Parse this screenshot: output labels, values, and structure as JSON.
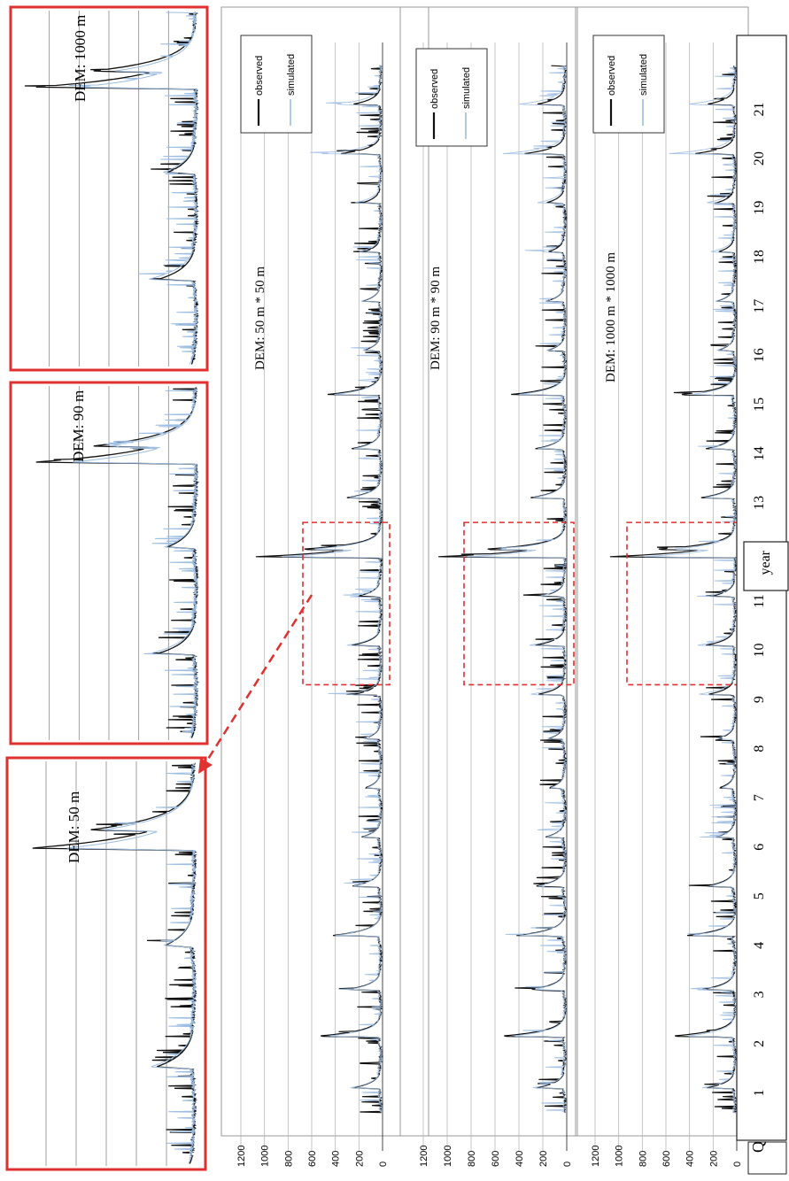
{
  "figure": {
    "xlabel": "year",
    "ylabel": "Q",
    "yticks": [
      "1200",
      "1000",
      "800",
      "600",
      "400",
      "200",
      "0"
    ],
    "years": [
      "1",
      "2",
      "3",
      "4",
      "5",
      "6",
      "7",
      "8",
      "9",
      "10",
      "11",
      "12",
      "13",
      "14",
      "15",
      "16",
      "17",
      "18",
      "19",
      "20",
      "21"
    ]
  },
  "colors": {
    "observed": "#111111",
    "simulated": "#9dbde2",
    "highlight": "#e03030",
    "grid": "#b8b8b8"
  },
  "chart_data": [
    {
      "type": "line",
      "title": "DEM: 50 m * 50 m",
      "xlabel": "year",
      "ylabel": "Q",
      "ylim": [
        0,
        1200
      ],
      "xlim": [
        0,
        22
      ],
      "grid": true,
      "legend": "top-right",
      "series": [
        {
          "name": "observed",
          "peaks": [
            [
              1.1,
              250
            ],
            [
              2.15,
              560
            ],
            [
              3.1,
              300
            ],
            [
              4.2,
              420
            ],
            [
              5.2,
              260
            ],
            [
              6.2,
              170
            ],
            [
              7.2,
              140
            ],
            [
              8.2,
              150
            ],
            [
              9.1,
              240
            ],
            [
              10.1,
              260
            ],
            [
              11.1,
              200
            ],
            [
              11.9,
              1100
            ],
            [
              12.05,
              710
            ],
            [
              13.1,
              300
            ],
            [
              14.1,
              250
            ],
            [
              15.2,
              470
            ],
            [
              16.1,
              150
            ],
            [
              17.1,
              160
            ],
            [
              18.1,
              150
            ],
            [
              19.1,
              160
            ],
            [
              20.1,
              340
            ],
            [
              21.1,
              250
            ]
          ]
        },
        {
          "name": "simulated",
          "peaks": [
            [
              1.1,
              270
            ],
            [
              2.15,
              480
            ],
            [
              3.1,
              280
            ],
            [
              4.2,
              400
            ],
            [
              5.2,
              250
            ],
            [
              6.2,
              160
            ],
            [
              7.2,
              130
            ],
            [
              8.2,
              160
            ],
            [
              9.1,
              300
            ],
            [
              10.1,
              300
            ],
            [
              11.1,
              210
            ],
            [
              11.9,
              870
            ],
            [
              12.05,
              620
            ],
            [
              13.1,
              280
            ],
            [
              14.1,
              230
            ],
            [
              15.2,
              410
            ],
            [
              16.1,
              160
            ],
            [
              17.1,
              170
            ],
            [
              18.1,
              200
            ],
            [
              19.1,
              230
            ],
            [
              20.1,
              500
            ],
            [
              21.1,
              400
            ]
          ]
        }
      ]
    },
    {
      "type": "line",
      "title": "DEM: 90 m * 90 m",
      "xlabel": "year",
      "ylabel": "Q",
      "ylim": [
        0,
        1200
      ],
      "xlim": [
        0,
        22
      ],
      "grid": true,
      "legend": "top-right",
      "series": [
        {
          "name": "observed",
          "peaks": [
            [
              1.1,
              250
            ],
            [
              2.15,
              560
            ],
            [
              3.1,
              300
            ],
            [
              4.2,
              420
            ],
            [
              5.2,
              260
            ],
            [
              6.2,
              170
            ],
            [
              7.2,
              140
            ],
            [
              8.2,
              150
            ],
            [
              9.1,
              240
            ],
            [
              10.1,
              260
            ],
            [
              11.1,
              200
            ],
            [
              11.9,
              1100
            ],
            [
              12.05,
              710
            ],
            [
              13.1,
              300
            ],
            [
              14.1,
              250
            ],
            [
              15.2,
              470
            ],
            [
              16.1,
              150
            ],
            [
              17.1,
              160
            ],
            [
              18.1,
              150
            ],
            [
              19.1,
              160
            ],
            [
              20.1,
              340
            ],
            [
              21.1,
              250
            ]
          ]
        },
        {
          "name": "simulated",
          "peaks": [
            [
              1.1,
              280
            ],
            [
              2.15,
              470
            ],
            [
              3.1,
              270
            ],
            [
              4.2,
              390
            ],
            [
              5.2,
              240
            ],
            [
              6.2,
              160
            ],
            [
              7.2,
              130
            ],
            [
              8.2,
              160
            ],
            [
              9.1,
              310
            ],
            [
              10.1,
              310
            ],
            [
              11.1,
              220
            ],
            [
              11.9,
              850
            ],
            [
              12.05,
              600
            ],
            [
              13.1,
              280
            ],
            [
              14.1,
              230
            ],
            [
              15.2,
              400
            ],
            [
              16.1,
              160
            ],
            [
              17.1,
              170
            ],
            [
              18.1,
              210
            ],
            [
              19.1,
              240
            ],
            [
              20.1,
              520
            ],
            [
              21.1,
              410
            ]
          ]
        }
      ]
    },
    {
      "type": "line",
      "title": "DEM: 1000 m * 1000 m",
      "xlabel": "year",
      "ylabel": "Q",
      "ylim": [
        0,
        1200
      ],
      "xlim": [
        0,
        22
      ],
      "grid": true,
      "legend": "top-right",
      "series": [
        {
          "name": "observed",
          "peaks": [
            [
              1.1,
              250
            ],
            [
              2.15,
              560
            ],
            [
              3.1,
              300
            ],
            [
              4.2,
              420
            ],
            [
              5.2,
              260
            ],
            [
              6.2,
              170
            ],
            [
              7.2,
              140
            ],
            [
              8.2,
              150
            ],
            [
              9.1,
              240
            ],
            [
              10.1,
              260
            ],
            [
              11.1,
              200
            ],
            [
              11.9,
              1100
            ],
            [
              12.05,
              710
            ],
            [
              13.1,
              300
            ],
            [
              14.1,
              250
            ],
            [
              15.2,
              470
            ],
            [
              16.1,
              150
            ],
            [
              17.1,
              160
            ],
            [
              18.1,
              150
            ],
            [
              19.1,
              160
            ],
            [
              20.1,
              340
            ],
            [
              21.1,
              250
            ]
          ]
        },
        {
          "name": "simulated",
          "peaks": [
            [
              1.1,
              290
            ],
            [
              2.15,
              440
            ],
            [
              3.1,
              260
            ],
            [
              4.2,
              370
            ],
            [
              5.2,
              230
            ],
            [
              6.2,
              150
            ],
            [
              7.2,
              120
            ],
            [
              8.2,
              170
            ],
            [
              9.1,
              330
            ],
            [
              10.1,
              330
            ],
            [
              11.1,
              230
            ],
            [
              11.9,
              800
            ],
            [
              12.05,
              560
            ],
            [
              13.1,
              270
            ],
            [
              14.1,
              220
            ],
            [
              15.2,
              380
            ],
            [
              16.1,
              160
            ],
            [
              17.1,
              170
            ],
            [
              18.1,
              220
            ],
            [
              19.1,
              250
            ],
            [
              20.1,
              560
            ],
            [
              21.1,
              420
            ]
          ]
        }
      ]
    }
  ],
  "zoom_panels": [
    {
      "label": "DEM: 50 m",
      "xrange": [
        9.3,
        12.6
      ]
    },
    {
      "label": "DEM: 90 m",
      "xrange": [
        9.3,
        12.6
      ]
    },
    {
      "label": "DEM: 1000 m",
      "xrange": [
        9.3,
        12.6
      ]
    }
  ]
}
